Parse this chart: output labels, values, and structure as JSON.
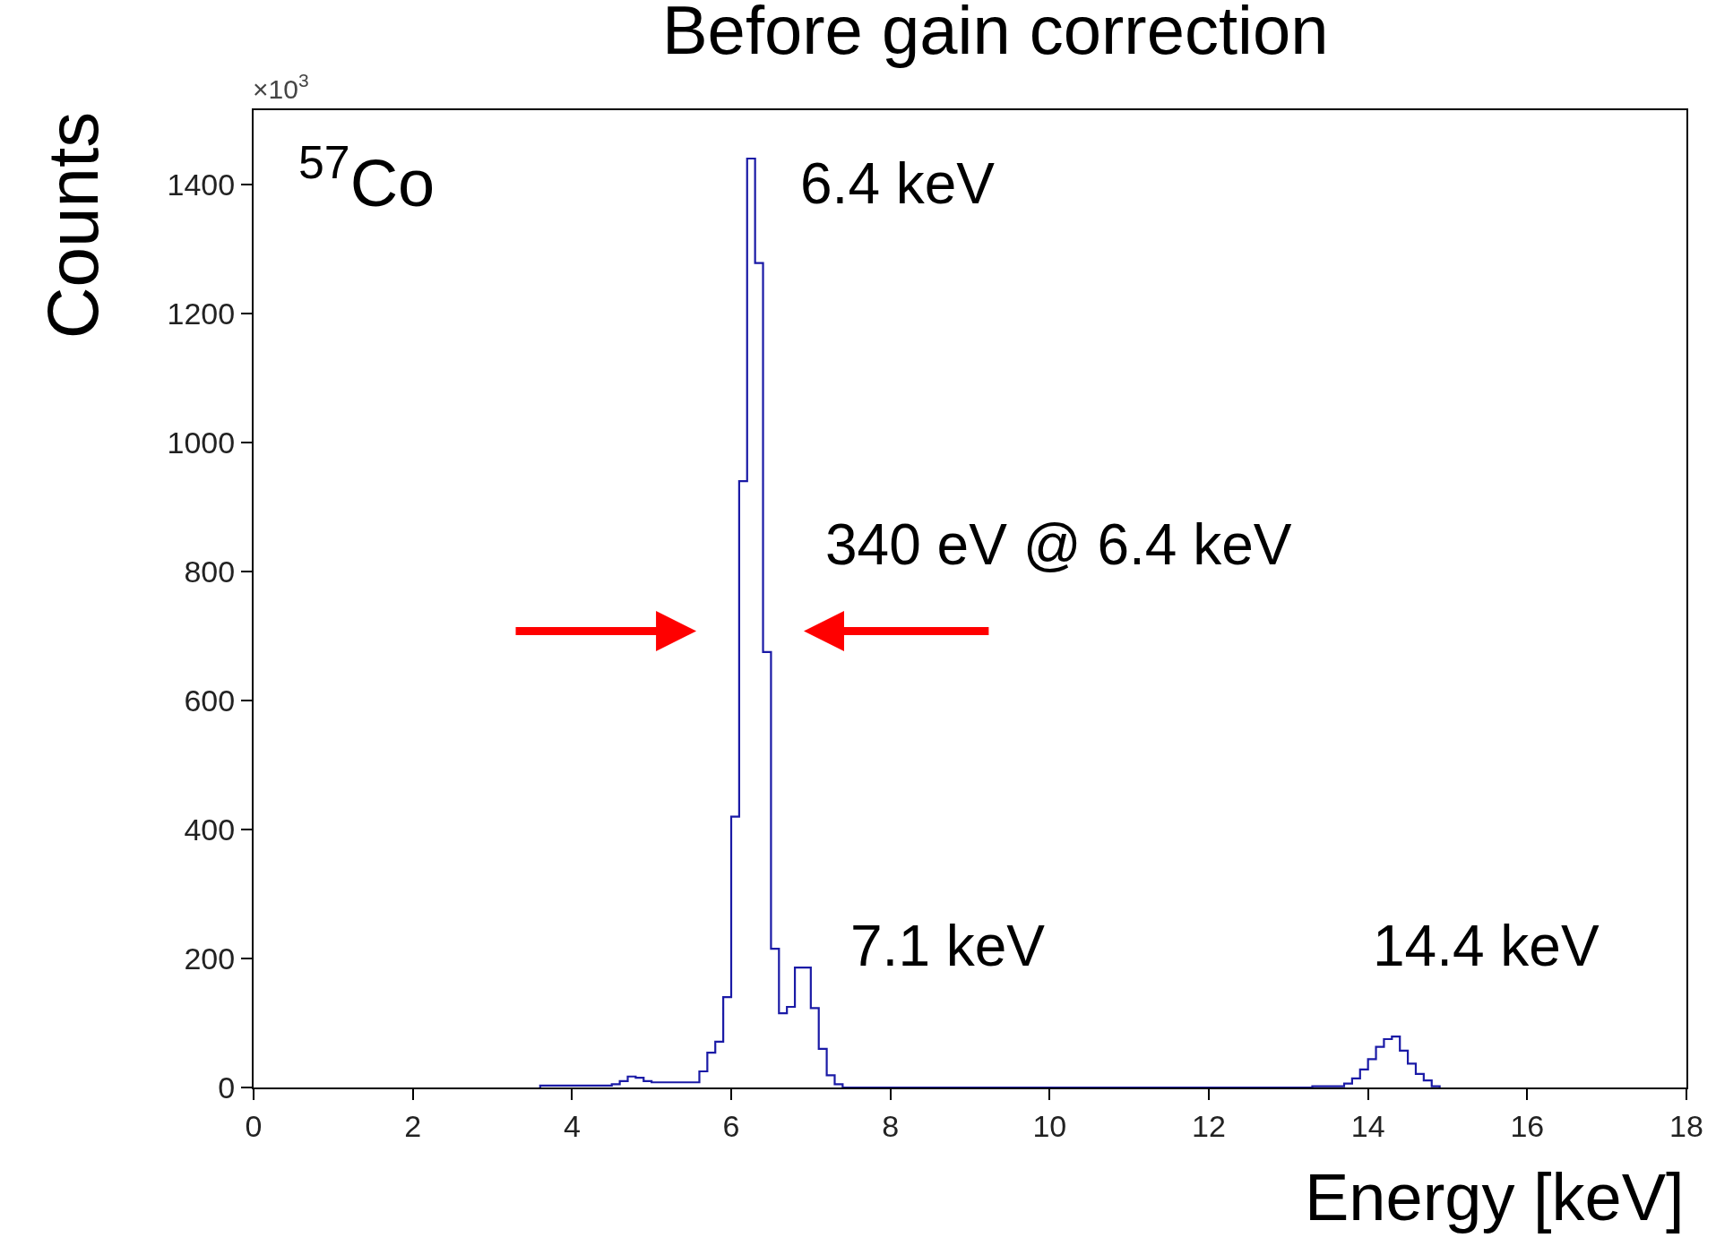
{
  "chart_data": {
    "type": "histogram",
    "title": "Before gain correction",
    "xlabel": "Energy [keV]",
    "ylabel": "Counts",
    "bins": [
      3.6,
      3.7,
      3.8,
      3.9,
      4.0,
      4.1,
      4.2,
      4.3,
      4.4,
      4.5,
      4.6,
      4.7,
      4.8,
      4.9,
      5.0,
      5.1,
      5.2,
      5.3,
      5.4,
      5.5,
      5.6,
      5.7,
      5.8,
      5.9,
      6.0,
      6.1,
      6.2,
      6.3,
      6.4,
      6.5,
      6.6,
      6.7,
      6.8,
      6.9,
      7.0,
      7.1,
      7.2,
      7.3,
      7.4,
      13.3,
      13.4,
      13.5,
      13.6,
      13.7,
      13.8,
      13.9,
      14.0,
      14.1,
      14.2,
      14.3,
      14.4,
      14.5,
      14.6,
      14.7,
      14.8,
      14.9
    ],
    "values": [
      3,
      3,
      3,
      3,
      3,
      3,
      3,
      3,
      3,
      5,
      10,
      17,
      15,
      10,
      8,
      8,
      8,
      8,
      8,
      8,
      25,
      54,
      71,
      140,
      420,
      940,
      1440,
      1278,
      675,
      215,
      115,
      125,
      186,
      186,
      123,
      60,
      19,
      5,
      0,
      2,
      2,
      2,
      2,
      6,
      14,
      28,
      44,
      63,
      75,
      79,
      57,
      37,
      21,
      11,
      2
    ],
    "color": "#1a1aa6",
    "xlim": [
      0,
      18
    ],
    "xticks": [
      0,
      2,
      4,
      6,
      8,
      10,
      12,
      14,
      16,
      18
    ],
    "ylim": [
      0,
      1515
    ],
    "yticks": [
      0,
      200,
      400,
      600,
      800,
      1000,
      1200,
      1400
    ],
    "annotations": [
      "×10$^{3}$",
      "$^{57}$Co",
      "6.4 keV",
      "340 eV @ 6.4 keV",
      "7.1 keV",
      "14.4 keV"
    ]
  }
}
